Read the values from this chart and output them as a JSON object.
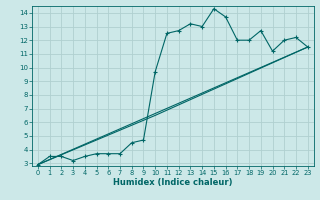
{
  "xlabel": "Humidex (Indice chaleur)",
  "bg_color": "#cce8e8",
  "grid_color": "#b0d0d0",
  "line_color": "#006666",
  "xlim": [
    -0.5,
    23.5
  ],
  "ylim": [
    2.8,
    14.5
  ],
  "xticks": [
    0,
    1,
    2,
    3,
    4,
    5,
    6,
    7,
    8,
    9,
    10,
    11,
    12,
    13,
    14,
    15,
    16,
    17,
    18,
    19,
    20,
    21,
    22,
    23
  ],
  "yticks": [
    3,
    4,
    5,
    6,
    7,
    8,
    9,
    10,
    11,
    12,
    13,
    14
  ],
  "line1_x": [
    0,
    1,
    2,
    3,
    4,
    5,
    6,
    7,
    8,
    9,
    10,
    11,
    12,
    13,
    14,
    15,
    16,
    17,
    18,
    19,
    20,
    21,
    22,
    23
  ],
  "line1_y": [
    2.9,
    3.5,
    3.5,
    3.2,
    3.5,
    3.7,
    3.7,
    3.7,
    4.5,
    4.7,
    9.7,
    12.5,
    12.7,
    13.2,
    13.0,
    14.3,
    13.7,
    12.0,
    12.0,
    12.7,
    11.2,
    12.0,
    12.2,
    11.5
  ],
  "line2_x": [
    0,
    23
  ],
  "line2_y": [
    2.9,
    11.5
  ],
  "line3_x": [
    0,
    10,
    23
  ],
  "line3_y": [
    2.9,
    6.5,
    11.5
  ]
}
